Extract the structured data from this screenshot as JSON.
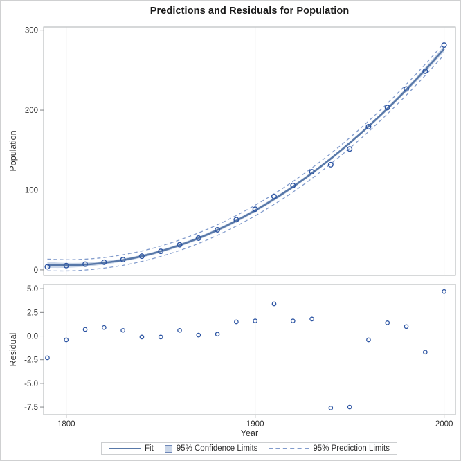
{
  "colors": {
    "fit_line": "#5878a8",
    "band_fill": "#cbd7e9",
    "prediction_dash": "#819bcc",
    "marker": "#2d55a3",
    "grid": "#e8e8e8",
    "panel_border": "#aeb1b3",
    "tick": "#808386",
    "text": "#2e2e2e",
    "title_text": "#1a1a1a",
    "zero_line": "#909294",
    "figure_border": "#cfd0d1",
    "legend_border": "#ccced0",
    "legend_swatch_border": "#6e87b8"
  },
  "chart_data": [
    {
      "id": "fit-panel",
      "type": "line",
      "title": "Predictions and Residuals for Population",
      "ylabel": "Population",
      "xlim": [
        1788,
        2006
      ],
      "ylim": [
        -7,
        304
      ],
      "xticks": [
        1800,
        1900,
        2000
      ],
      "xticklabels": [
        "1800",
        "1900",
        "2000"
      ],
      "yticks": [
        0,
        100,
        200,
        300
      ],
      "yticklabels": [
        "0",
        "100",
        "200",
        "300"
      ],
      "grid": "vertical-only",
      "x": [
        1790,
        1800,
        1810,
        1820,
        1830,
        1840,
        1850,
        1860,
        1870,
        1880,
        1890,
        1900,
        1910,
        1920,
        1930,
        1940,
        1950,
        1960,
        1970,
        1980,
        1990,
        2000
      ],
      "observed": [
        3.9,
        5.3,
        7.2,
        9.6,
        12.9,
        17.1,
        23.2,
        31.4,
        39.8,
        50.2,
        62.9,
        76.0,
        92.0,
        105.7,
        122.8,
        131.7,
        151.3,
        179.3,
        203.3,
        226.5,
        248.7,
        281.4
      ],
      "fit": [
        6.2,
        5.7,
        6.6,
        8.8,
        12.3,
        17.1,
        23.3,
        30.9,
        39.7,
        49.9,
        61.5,
        74.4,
        88.6,
        104.1,
        121.0,
        139.2,
        158.8,
        179.7,
        201.9,
        225.5,
        250.4,
        276.7
      ],
      "ci_half_width": [
        3.7,
        3.1,
        2.5,
        2.2,
        1.9,
        1.8,
        1.8,
        1.9,
        1.9,
        2.0,
        2.0,
        2.0,
        2.0,
        1.9,
        1.9,
        1.8,
        1.8,
        1.9,
        2.2,
        2.5,
        3.1,
        3.7
      ],
      "pi_half_width": [
        7.3,
        7.0,
        6.8,
        6.6,
        6.6,
        6.5,
        6.5,
        6.6,
        6.6,
        6.6,
        6.6,
        6.6,
        6.6,
        6.6,
        6.6,
        6.5,
        6.5,
        6.6,
        6.6,
        6.8,
        7.0,
        7.3
      ],
      "legend": [
        {
          "label": "Fit",
          "type": "line"
        },
        {
          "label": "95% Confidence Limits",
          "type": "band"
        },
        {
          "label": "95% Prediction Limits",
          "type": "dashed"
        }
      ],
      "legend_position": "bottom-outside"
    },
    {
      "id": "residual-panel",
      "type": "scatter",
      "ylabel": "Residual",
      "xlabel": "Year",
      "xlim": [
        1788,
        2006
      ],
      "ylim": [
        -8.3,
        5.45
      ],
      "xticks": [
        1800,
        1900,
        2000
      ],
      "xticklabels": [
        "1800",
        "1900",
        "2000"
      ],
      "yticks": [
        5.0,
        2.5,
        0.0,
        -2.5,
        -5.0,
        -7.5
      ],
      "yticklabels": [
        "5.0",
        "2.5",
        "0.0",
        "-2.5",
        "-5.0",
        "-7.5"
      ],
      "grid": "vertical-only",
      "reference_line_y": 0,
      "x": [
        1790,
        1800,
        1810,
        1820,
        1830,
        1840,
        1850,
        1860,
        1870,
        1880,
        1890,
        1900,
        1910,
        1920,
        1930,
        1940,
        1950,
        1960,
        1970,
        1980,
        1990,
        2000
      ],
      "residuals": [
        -2.3,
        -0.4,
        0.7,
        0.9,
        0.6,
        -0.1,
        -0.1,
        0.6,
        0.1,
        0.2,
        1.5,
        1.6,
        3.4,
        1.6,
        1.8,
        -7.6,
        -7.5,
        -0.4,
        1.4,
        1.0,
        -1.7,
        4.7
      ]
    }
  ]
}
